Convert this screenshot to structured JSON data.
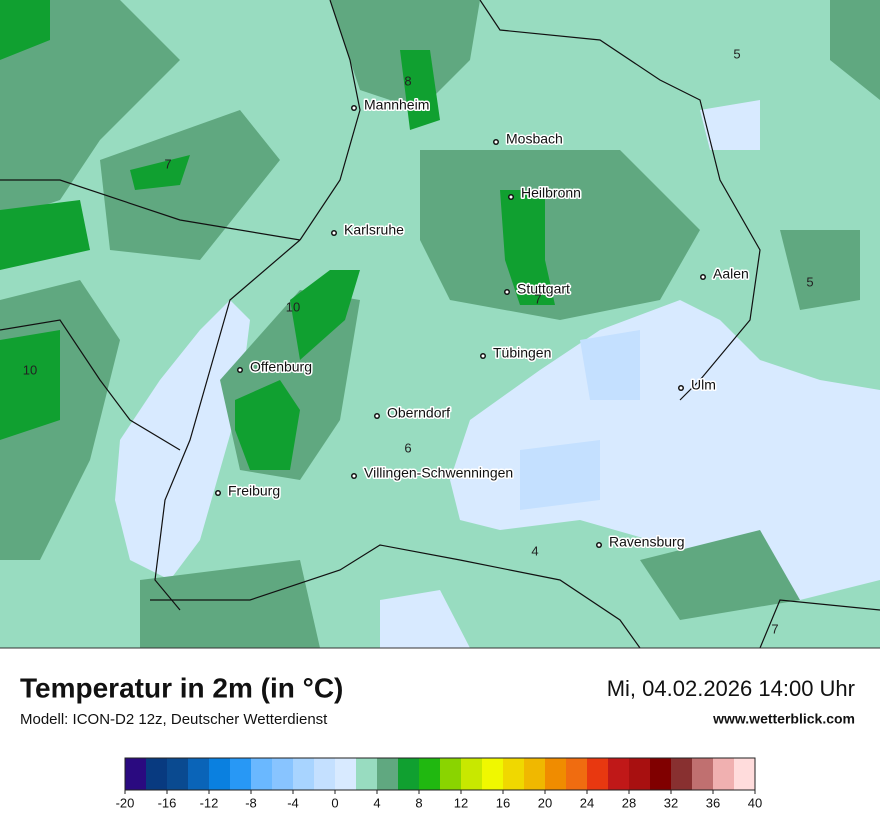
{
  "header": {
    "title": "Temperatur in 2m (in °C)",
    "model": "Modell: ICON-D2 12z, Deutscher Wetterdienst",
    "datetime": "Mi, 04.02.2026 14:00 Uhr",
    "website": "www.wetterblick.com"
  },
  "map": {
    "cities": [
      "Mannheim",
      "Mosbach",
      "Heilbronn",
      "Karlsruhe",
      "Stuttgart",
      "Aalen",
      "Tübingen",
      "Offenburg",
      "Ulm",
      "Oberndorf",
      "Villingen-Schwenningen",
      "Freiburg",
      "Ravensburg"
    ],
    "contour_labels": [
      "8",
      "7",
      "10",
      "7",
      "10",
      "6",
      "4",
      "5",
      "5",
      "7"
    ]
  },
  "colorbar": {
    "ticks": [
      -20,
      -16,
      -12,
      -8,
      -4,
      0,
      4,
      8,
      12,
      16,
      20,
      24,
      28,
      32,
      36,
      40
    ],
    "colors": [
      "#2a0a80",
      "#083a80",
      "#0a4a90",
      "#0a64b8",
      "#0a80e0",
      "#2898f5",
      "#6ab8ff",
      "#88c4ff",
      "#a8d4ff",
      "#c4e0ff",
      "#d8eaff",
      "#98dcc0",
      "#60a880",
      "#10a030",
      "#20b810",
      "#8ad400",
      "#c8e800",
      "#f0f800",
      "#f0d800",
      "#f0b800",
      "#f08c00",
      "#f06c10",
      "#e83810",
      "#c01818",
      "#a81010",
      "#800000",
      "#883030",
      "#c07070",
      "#f0b0b0",
      "#ffdcdc"
    ]
  }
}
